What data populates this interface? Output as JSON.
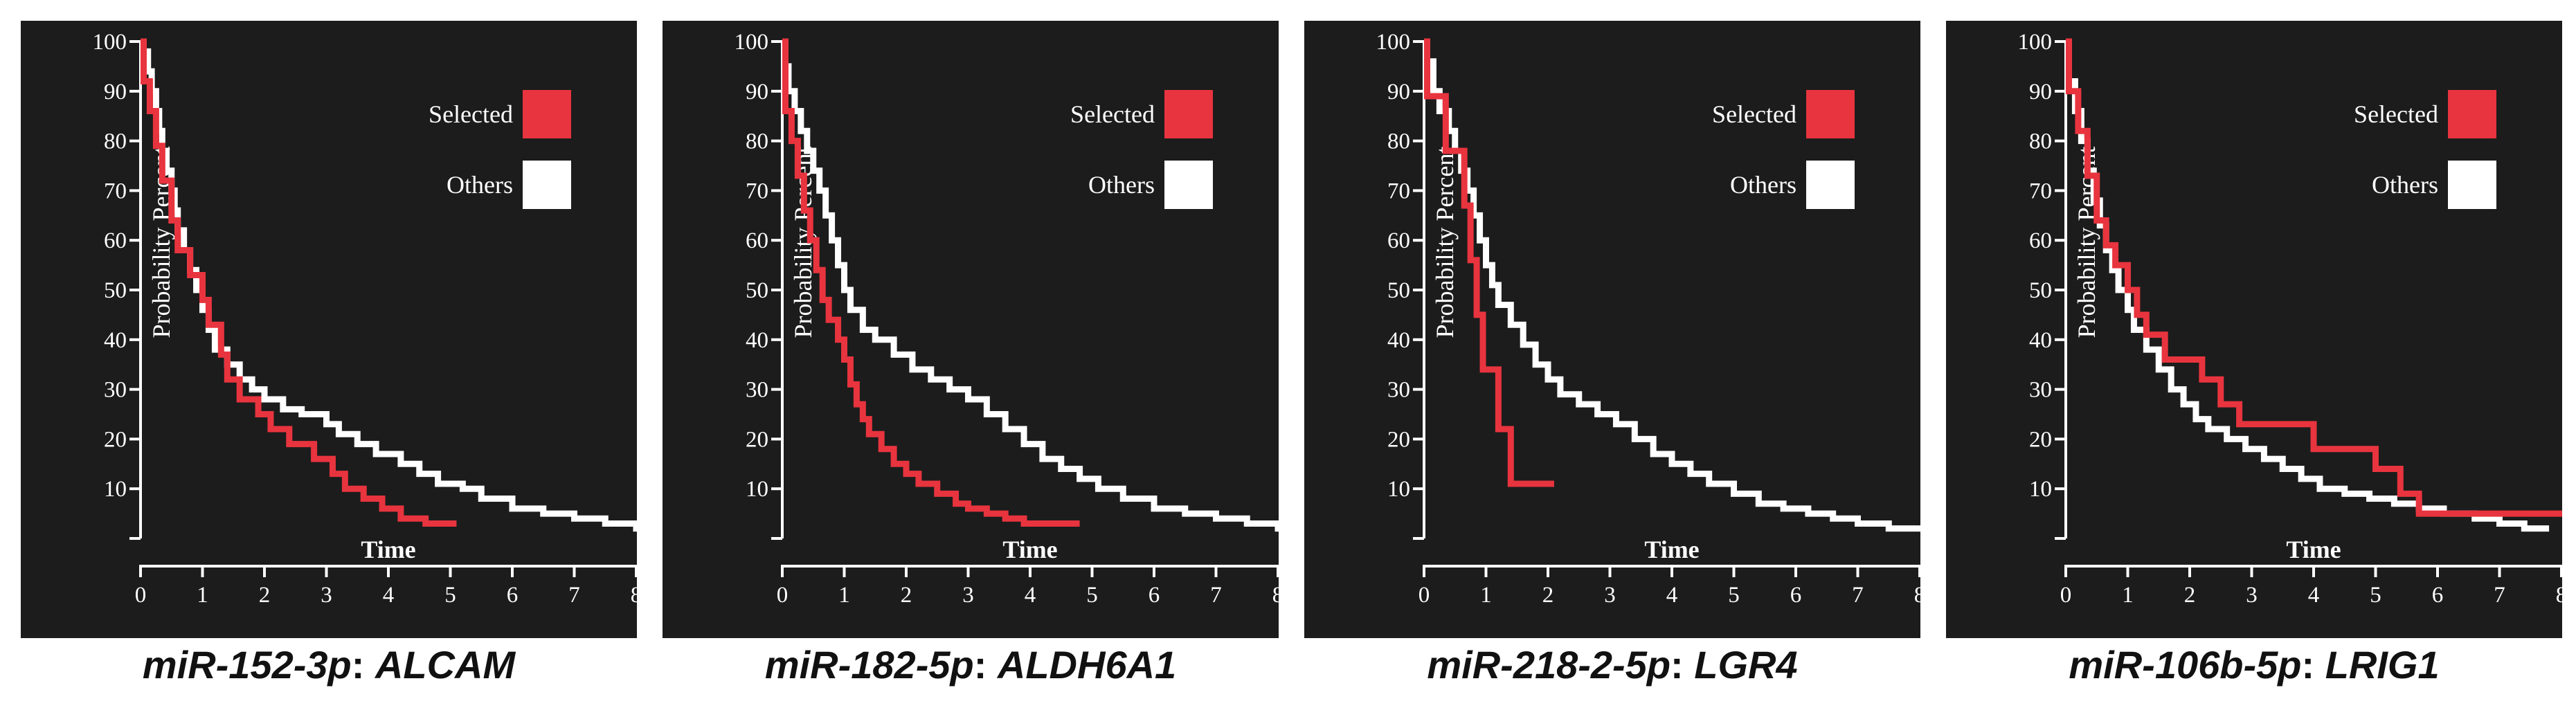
{
  "colors": {
    "background": "#1c1c1c",
    "axis": "#ffffff",
    "selected": "#e8343e",
    "others": "#ffffff"
  },
  "chart_data": [
    {
      "type": "line",
      "title": "miR-152-3p: ALCAM",
      "caption_mirna": "miR-152-3p",
      "caption_gene": "ALCAM",
      "xlabel": "Time",
      "ylabel": "Probability Percent",
      "xlim": [
        0,
        8.3
      ],
      "ylim": [
        0,
        100
      ],
      "xticks": [
        0,
        1,
        2,
        3,
        4,
        5,
        6,
        7,
        8
      ],
      "yticks": [
        10,
        20,
        30,
        40,
        50,
        60,
        70,
        80,
        90,
        100
      ],
      "legend": [
        "Selected",
        "Others"
      ],
      "series": [
        {
          "name": "Others",
          "color": "#ffffff",
          "x": [
            0,
            0.05,
            0.12,
            0.18,
            0.25,
            0.3,
            0.35,
            0.42,
            0.5,
            0.55,
            0.6,
            0.7,
            0.8,
            0.9,
            1.0,
            1.1,
            1.2,
            1.4,
            1.6,
            1.8,
            2.0,
            2.3,
            2.6,
            3.0,
            3.2,
            3.5,
            3.8,
            4.2,
            4.5,
            4.8,
            5.2,
            5.5,
            6.0,
            6.5,
            7.0,
            7.5,
            8.0,
            8.3
          ],
          "y": [
            100,
            98,
            94,
            90,
            86,
            82,
            78,
            74,
            70,
            66,
            62,
            58,
            54,
            50,
            46,
            42,
            38,
            35,
            32,
            30,
            28,
            26,
            25,
            23,
            21,
            19,
            17,
            15,
            13,
            11,
            10,
            8,
            6,
            5,
            4,
            3,
            2,
            2
          ]
        },
        {
          "name": "Selected",
          "color": "#e8343e",
          "x": [
            0,
            0.05,
            0.15,
            0.25,
            0.35,
            0.5,
            0.6,
            0.8,
            1.0,
            1.1,
            1.3,
            1.4,
            1.6,
            1.9,
            2.1,
            2.4,
            2.8,
            3.1,
            3.3,
            3.6,
            3.9,
            4.2,
            4.6,
            5.1
          ],
          "y": [
            100,
            92,
            86,
            79,
            72,
            64,
            58,
            53,
            48,
            43,
            37,
            32,
            28,
            25,
            22,
            19,
            16,
            13,
            10,
            8,
            6,
            4,
            3,
            3
          ]
        }
      ]
    },
    {
      "type": "line",
      "title": "miR-182-5p: ALDH6A1",
      "caption_mirna": "miR-182-5p",
      "caption_gene": "ALDH6A1",
      "xlabel": "Time",
      "ylabel": "Probability Percent",
      "xlim": [
        0,
        8.3
      ],
      "ylim": [
        0,
        100
      ],
      "xticks": [
        0,
        1,
        2,
        3,
        4,
        5,
        6,
        7,
        8
      ],
      "yticks": [
        10,
        20,
        30,
        40,
        50,
        60,
        70,
        80,
        90,
        100
      ],
      "legend": [
        "Selected",
        "Others"
      ],
      "series": [
        {
          "name": "Others",
          "color": "#ffffff",
          "x": [
            0,
            0.05,
            0.1,
            0.2,
            0.3,
            0.4,
            0.5,
            0.6,
            0.7,
            0.8,
            0.9,
            1.0,
            1.1,
            1.3,
            1.5,
            1.8,
            2.1,
            2.4,
            2.7,
            3.0,
            3.3,
            3.6,
            3.9,
            4.2,
            4.5,
            4.8,
            5.1,
            5.5,
            6.0,
            6.5,
            7.0,
            7.5,
            8.0,
            8.3
          ],
          "y": [
            100,
            95,
            90,
            86,
            82,
            78,
            74,
            70,
            65,
            60,
            55,
            50,
            46,
            42,
            40,
            37,
            34,
            32,
            30,
            28,
            25,
            22,
            19,
            16,
            14,
            12,
            10,
            8,
            6,
            5,
            4,
            3,
            2,
            2
          ]
        },
        {
          "name": "Selected",
          "color": "#e8343e",
          "x": [
            0,
            0.05,
            0.15,
            0.25,
            0.35,
            0.45,
            0.55,
            0.65,
            0.75,
            0.9,
            1.0,
            1.1,
            1.2,
            1.3,
            1.4,
            1.6,
            1.8,
            2.0,
            2.2,
            2.5,
            2.8,
            3.0,
            3.3,
            3.6,
            3.9,
            4.3,
            4.8
          ],
          "y": [
            100,
            86,
            80,
            73,
            66,
            60,
            54,
            48,
            44,
            40,
            36,
            31,
            27,
            24,
            21,
            18,
            15,
            13,
            11,
            9,
            7,
            6,
            5,
            4,
            3,
            3,
            3
          ]
        }
      ]
    },
    {
      "type": "line",
      "title": "miR-218-2-5p: LGR4",
      "caption_mirna": "miR-218-2-5p",
      "caption_gene": "LGR4",
      "xlabel": "Time",
      "ylabel": "Probability Percent",
      "xlim": [
        0,
        8.3
      ],
      "ylim": [
        0,
        100
      ],
      "xticks": [
        0,
        1,
        2,
        3,
        4,
        5,
        6,
        7,
        8
      ],
      "yticks": [
        10,
        20,
        30,
        40,
        50,
        60,
        70,
        80,
        90,
        100
      ],
      "legend": [
        "Selected",
        "Others"
      ],
      "series": [
        {
          "name": "Others",
          "color": "#ffffff",
          "x": [
            0,
            0.05,
            0.15,
            0.25,
            0.4,
            0.5,
            0.6,
            0.7,
            0.8,
            0.9,
            1.0,
            1.1,
            1.2,
            1.4,
            1.6,
            1.8,
            2.0,
            2.2,
            2.5,
            2.8,
            3.1,
            3.4,
            3.7,
            4.0,
            4.3,
            4.6,
            5.0,
            5.4,
            5.8,
            6.2,
            6.6,
            7.0,
            7.5,
            8.0,
            8.3
          ],
          "y": [
            100,
            96,
            90,
            86,
            82,
            78,
            74,
            70,
            65,
            60,
            55,
            51,
            47,
            43,
            39,
            35,
            32,
            29,
            27,
            25,
            23,
            20,
            17,
            15,
            13,
            11,
            9,
            7,
            6,
            5,
            4,
            3,
            2,
            2,
            2
          ]
        },
        {
          "name": "Selected",
          "color": "#e8343e",
          "x": [
            0,
            0.05,
            0.35,
            0.55,
            0.65,
            0.75,
            0.85,
            0.95,
            1.05,
            1.2,
            1.4,
            1.55,
            2.1
          ],
          "y": [
            100,
            89,
            78,
            78,
            67,
            56,
            45,
            34,
            34,
            22,
            11,
            11,
            11
          ]
        }
      ]
    },
    {
      "type": "line",
      "title": "miR-106b-5p: LRIG1",
      "caption_mirna": "miR-106b-5p",
      "caption_gene": "LRIG1",
      "xlabel": "Time",
      "ylabel": "Probability Percent",
      "xlim": [
        0,
        8.3
      ],
      "ylim": [
        0,
        100
      ],
      "xticks": [
        0,
        1,
        2,
        3,
        4,
        5,
        6,
        7,
        8
      ],
      "yticks": [
        10,
        20,
        30,
        40,
        50,
        60,
        70,
        80,
        90,
        100
      ],
      "legend": [
        "Selected",
        "Others"
      ],
      "series": [
        {
          "name": "Others",
          "color": "#ffffff",
          "x": [
            0,
            0.05,
            0.15,
            0.25,
            0.35,
            0.45,
            0.55,
            0.65,
            0.75,
            0.85,
            1.0,
            1.1,
            1.3,
            1.5,
            1.7,
            1.9,
            2.1,
            2.3,
            2.6,
            2.9,
            3.2,
            3.5,
            3.8,
            4.1,
            4.5,
            4.9,
            5.3,
            5.7,
            6.1,
            6.6,
            7.0,
            7.4,
            7.8
          ],
          "y": [
            100,
            92,
            86,
            80,
            74,
            68,
            63,
            58,
            54,
            50,
            46,
            42,
            38,
            34,
            30,
            27,
            24,
            22,
            20,
            18,
            16,
            14,
            12,
            10,
            9,
            8,
            7,
            6,
            5,
            4,
            3,
            2,
            2
          ]
        },
        {
          "name": "Selected",
          "color": "#e8343e",
          "x": [
            0,
            0.05,
            0.2,
            0.35,
            0.5,
            0.65,
            0.8,
            1.0,
            1.15,
            1.3,
            1.6,
            1.9,
            2.2,
            2.5,
            2.8,
            3.2,
            3.6,
            4.0,
            4.5,
            5.0,
            5.4,
            5.7,
            6.2,
            6.8,
            7.3,
            8.3
          ],
          "y": [
            100,
            90,
            82,
            73,
            64,
            59,
            55,
            50,
            45,
            41,
            36,
            36,
            32,
            27,
            23,
            23,
            23,
            18,
            18,
            14,
            9,
            5,
            5,
            5,
            5,
            5
          ]
        }
      ]
    }
  ]
}
